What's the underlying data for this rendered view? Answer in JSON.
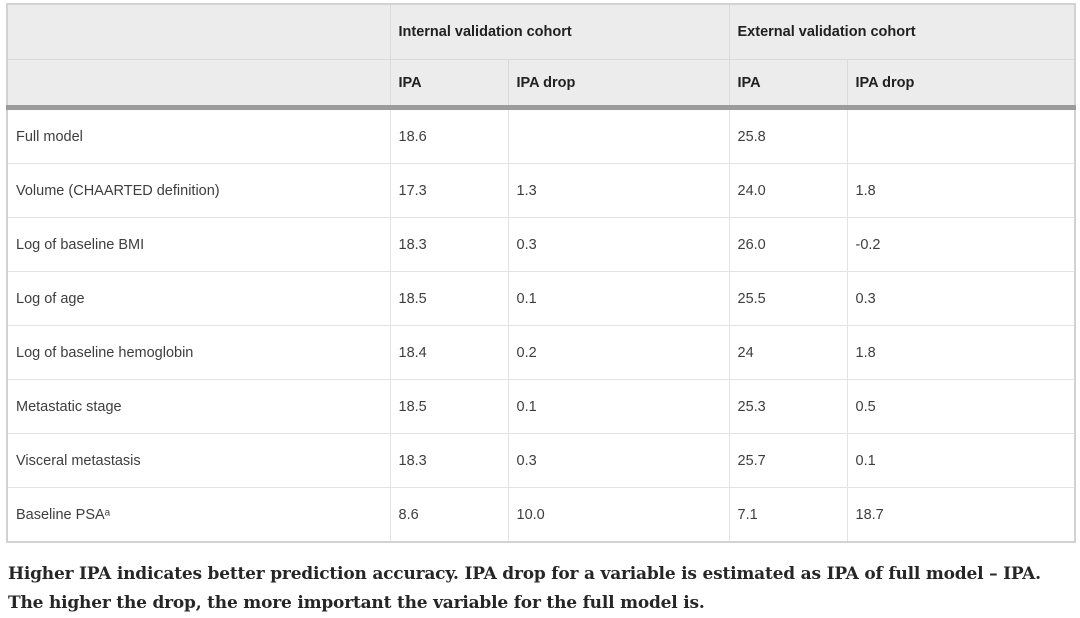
{
  "table": {
    "column_groups": [
      {
        "label": "Internal validation cohort"
      },
      {
        "label": "External validation cohort"
      }
    ],
    "sub_headers": [
      "IPA",
      "IPA drop",
      "IPA",
      "IPA drop"
    ],
    "rows": [
      {
        "label": "Full model",
        "values": [
          "18.6",
          "",
          "25.8",
          ""
        ]
      },
      {
        "label": "Volume (CHAARTED definition)",
        "values": [
          "17.3",
          "1.3",
          "24.0",
          "1.8"
        ]
      },
      {
        "label": "Log of baseline BMI",
        "values": [
          "18.3",
          "0.3",
          "26.0",
          "-0.2"
        ]
      },
      {
        "label": "Log of age",
        "values": [
          "18.5",
          "0.1",
          "25.5",
          "0.3"
        ]
      },
      {
        "label": "Log of baseline hemoglobin",
        "values": [
          "18.4",
          "0.2",
          "24",
          "1.8"
        ]
      },
      {
        "label": "Metastatic stage",
        "values": [
          "18.5",
          "0.1",
          "25.3",
          "0.5"
        ]
      },
      {
        "label": "Visceral metastasis",
        "values": [
          "18.3",
          "0.3",
          "25.7",
          "0.1"
        ]
      },
      {
        "label": "Baseline PSAᵃ",
        "values": [
          "8.6",
          "10.0",
          "7.1",
          "18.7"
        ]
      }
    ]
  },
  "footnote": "Higher IPA indicates better prediction accuracy. IPA drop for a variable is estimated as IPA of full model – IPA. The higher the drop, the more important the variable for the full model is.",
  "colors": {
    "header_background": "#ececec",
    "header_text": "#212121",
    "body_text": "#3e3e3e",
    "inner_border": "#e3e3e3",
    "outer_border": "#d2d2d2",
    "thick_rule": "#9b9b9b",
    "footnote_text": "#262626"
  }
}
